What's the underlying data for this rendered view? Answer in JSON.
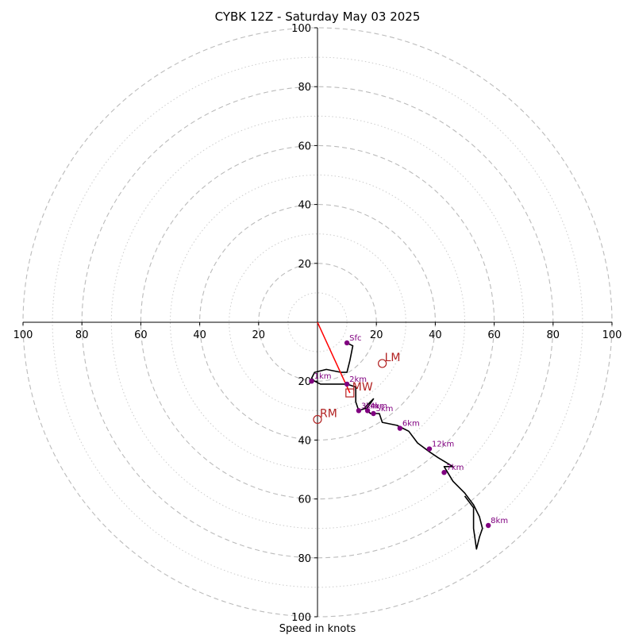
{
  "chart_data": {
    "type": "scatter",
    "subtype": "hodograph",
    "title": "CYBK 12Z - Saturday May 03 2025",
    "xlabel": "Speed in knots",
    "xlim": [
      -100,
      100
    ],
    "ylim": [
      -100,
      100
    ],
    "major_rings": [
      20,
      40,
      60,
      80,
      100
    ],
    "minor_rings": [
      10,
      30,
      50,
      70,
      90
    ],
    "x_ticks": [
      {
        "v": -100,
        "label": "100"
      },
      {
        "v": -80,
        "label": "80"
      },
      {
        "v": -60,
        "label": "60"
      },
      {
        "v": -40,
        "label": "40"
      },
      {
        "v": -20,
        "label": "20"
      },
      {
        "v": 20,
        "label": "20"
      },
      {
        "v": 40,
        "label": "40"
      },
      {
        "v": 60,
        "label": "60"
      },
      {
        "v": 80,
        "label": "80"
      },
      {
        "v": 100,
        "label": "100"
      }
    ],
    "y_ticks": [
      {
        "v": 100,
        "label": "100"
      },
      {
        "v": 80,
        "label": "80"
      },
      {
        "v": 60,
        "label": "60"
      },
      {
        "v": 40,
        "label": "40"
      },
      {
        "v": 20,
        "label": "20"
      },
      {
        "v": -20,
        "label": "20"
      },
      {
        "v": -40,
        "label": "40"
      },
      {
        "v": -60,
        "label": "60"
      },
      {
        "v": -80,
        "label": "80"
      },
      {
        "v": -100,
        "label": "100"
      }
    ],
    "series": [
      {
        "color": "#000000",
        "points": [
          [
            10,
            -7
          ],
          [
            12,
            -8
          ],
          [
            11,
            -13
          ],
          [
            10,
            -17
          ],
          [
            8,
            -17
          ],
          [
            3,
            -16
          ],
          [
            -1,
            -17
          ],
          [
            -2,
            -19
          ],
          [
            -1,
            -20
          ],
          [
            1,
            -21
          ],
          [
            6,
            -21
          ],
          [
            10,
            -21
          ],
          [
            13,
            -22
          ],
          [
            13,
            -27
          ],
          [
            14,
            -30
          ],
          [
            17,
            -29
          ],
          [
            19,
            -26
          ],
          [
            16,
            -29
          ],
          [
            18,
            -31
          ],
          [
            21,
            -31
          ],
          [
            22,
            -34
          ],
          [
            27,
            -35
          ],
          [
            31,
            -37
          ],
          [
            34,
            -41
          ],
          [
            38,
            -44
          ],
          [
            41,
            -46
          ],
          [
            46,
            -49
          ],
          [
            43,
            -49
          ],
          [
            46,
            -54
          ],
          [
            50,
            -58
          ],
          [
            53,
            -62
          ],
          [
            55,
            -66
          ],
          [
            56,
            -70
          ],
          [
            55,
            -73
          ],
          [
            54,
            -77
          ],
          [
            53,
            -70
          ],
          [
            53,
            -63
          ],
          [
            50,
            -59
          ]
        ]
      }
    ],
    "height_markers": [
      {
        "label": "Sfc",
        "u": 10,
        "v": -7
      },
      {
        "label": "1km",
        "u": -2,
        "v": -20
      },
      {
        "label": "2km",
        "u": 10,
        "v": -21
      },
      {
        "label": "3km",
        "u": 14,
        "v": -30
      },
      {
        "label": "4km",
        "u": 17,
        "v": -30
      },
      {
        "label": "5km",
        "u": 19,
        "v": -31
      },
      {
        "label": "6km",
        "u": 28,
        "v": -36
      },
      {
        "label": "7km",
        "u": 43,
        "v": -51
      },
      {
        "label": "8km",
        "u": 58,
        "v": -69
      },
      {
        "label": "12km",
        "u": 38,
        "v": -43
      }
    ],
    "motion_markers": [
      {
        "label": "LM",
        "u": 22,
        "v": -14,
        "shape": "circle"
      },
      {
        "label": "MW",
        "u": 11,
        "v": -24,
        "shape": "square"
      },
      {
        "label": "RM",
        "u": 0,
        "v": -33,
        "shape": "circle"
      }
    ],
    "storm_motion_vector": {
      "u": 11,
      "v": -24
    },
    "colors": {
      "hodo_line": "#000000",
      "height_marker": "#800080",
      "motion_marker": "#b22222",
      "motion_vector": "#ff0000",
      "major_ring": "#bbbbbb",
      "minor_ring": "#cccccc"
    },
    "grid": true
  }
}
